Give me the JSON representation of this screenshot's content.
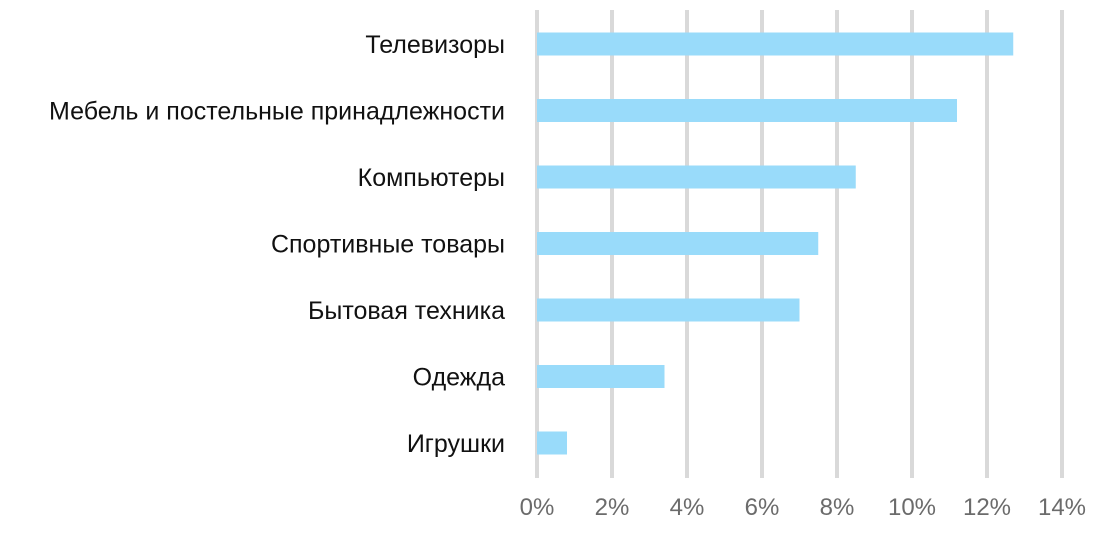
{
  "chart_data": {
    "type": "bar",
    "orientation": "horizontal",
    "categories": [
      "Телевизоры",
      "Мебель и постельные принадлежности",
      "Компьютеры",
      "Спортивные товары",
      "Бытовая техника",
      "Одежда",
      "Игрушки"
    ],
    "series": [
      {
        "values": [
          12.7,
          11.2,
          8.5,
          7.5,
          7.0,
          3.4,
          0.8
        ]
      }
    ],
    "title": "",
    "xlabel": "",
    "ylabel": "",
    "xlim": [
      0,
      14
    ],
    "x_ticks": [
      0,
      2,
      4,
      6,
      8,
      10,
      12,
      14
    ],
    "x_tick_labels": [
      "0%",
      "2%",
      "4%",
      "6%",
      "8%",
      "10%",
      "12%",
      "14%"
    ],
    "grid": true,
    "legend": "none",
    "bar_color": "#99DBFA",
    "grid_color": "#D9D9D9"
  }
}
